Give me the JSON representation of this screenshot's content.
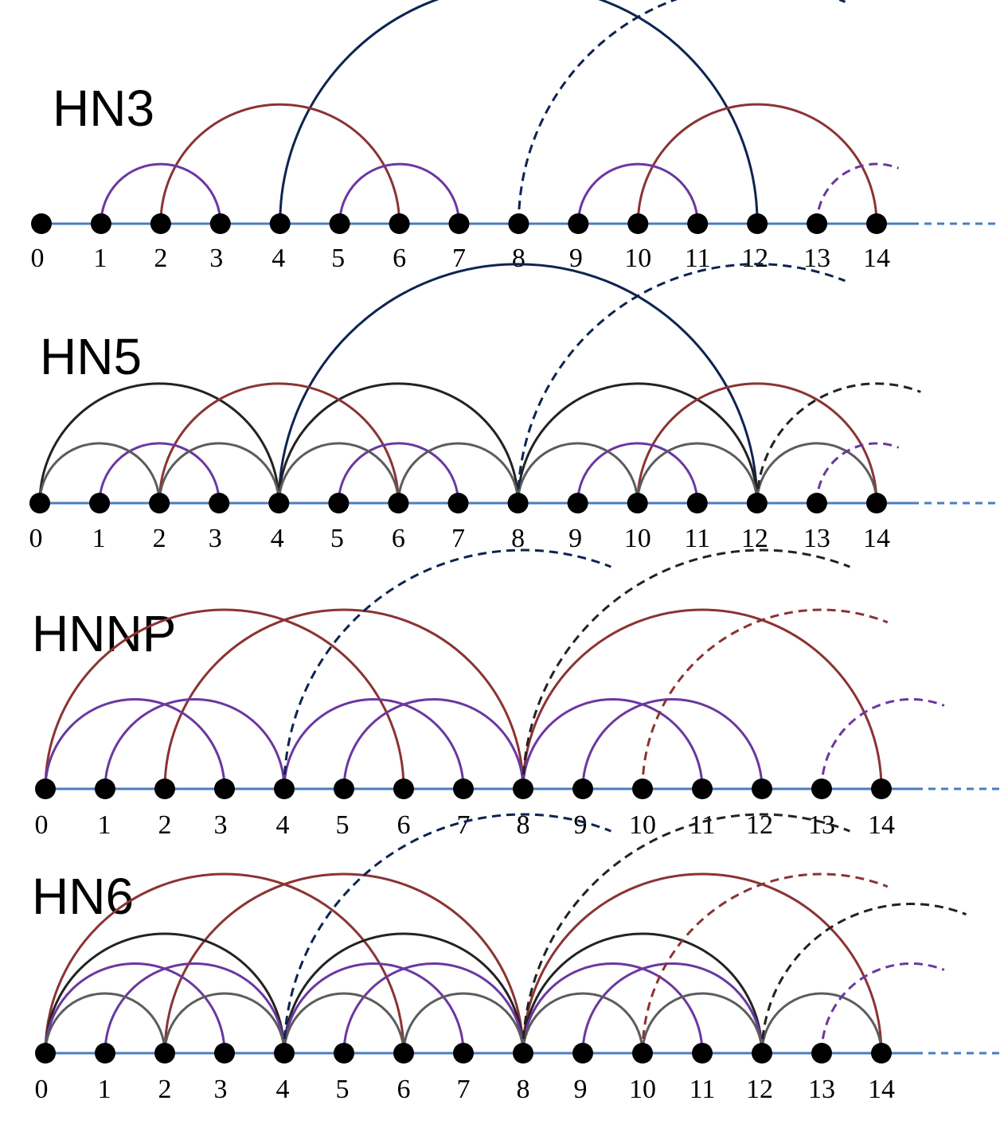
{
  "colors": {
    "axis": "#4a7dbf",
    "node": "#000000",
    "long": "#0d2451",
    "red": "#8b3333",
    "purple": "#6a38a0",
    "black": "#222222",
    "gray": "#5c5c5c"
  },
  "node_labels": [
    "0",
    "1",
    "2",
    "3",
    "4",
    "5",
    "6",
    "7",
    "8",
    "9",
    "10",
    "11",
    "12",
    "13",
    "14"
  ],
  "panels": [
    {
      "title": "HN3",
      "edges": [
        {
          "a": 1,
          "b": 3,
          "c": "purple"
        },
        {
          "a": 5,
          "b": 7,
          "c": "purple"
        },
        {
          "a": 9,
          "b": 11,
          "c": "purple"
        },
        {
          "a": 2,
          "b": 6,
          "c": "red"
        },
        {
          "a": 10,
          "b": 14,
          "c": "red"
        },
        {
          "a": 4,
          "b": 12,
          "c": "long"
        }
      ],
      "dashed": [
        {
          "a": 8,
          "b": 16,
          "c": "long"
        },
        {
          "a": 13,
          "b": 15,
          "c": "purple"
        }
      ]
    },
    {
      "title": "HN5",
      "edges": [
        {
          "a": 1,
          "b": 3,
          "c": "purple"
        },
        {
          "a": 5,
          "b": 7,
          "c": "purple"
        },
        {
          "a": 9,
          "b": 11,
          "c": "purple"
        },
        {
          "a": 0,
          "b": 2,
          "c": "gray"
        },
        {
          "a": 2,
          "b": 4,
          "c": "gray"
        },
        {
          "a": 4,
          "b": 6,
          "c": "gray"
        },
        {
          "a": 6,
          "b": 8,
          "c": "gray"
        },
        {
          "a": 8,
          "b": 10,
          "c": "gray"
        },
        {
          "a": 10,
          "b": 12,
          "c": "gray"
        },
        {
          "a": 12,
          "b": 14,
          "c": "gray"
        },
        {
          "a": 0,
          "b": 4,
          "c": "black"
        },
        {
          "a": 4,
          "b": 8,
          "c": "black"
        },
        {
          "a": 8,
          "b": 12,
          "c": "black"
        },
        {
          "a": 2,
          "b": 6,
          "c": "red"
        },
        {
          "a": 10,
          "b": 14,
          "c": "red"
        },
        {
          "a": 4,
          "b": 12,
          "c": "long"
        }
      ],
      "dashed": [
        {
          "a": 8,
          "b": 16,
          "c": "long"
        },
        {
          "a": 12,
          "b": 16,
          "c": "black"
        },
        {
          "a": 13,
          "b": 15,
          "c": "purple"
        }
      ]
    },
    {
      "title": "HNNP",
      "edges": [
        {
          "a": 0,
          "b": 3,
          "c": "purple"
        },
        {
          "a": 1,
          "b": 4,
          "c": "purple"
        },
        {
          "a": 4,
          "b": 7,
          "c": "purple"
        },
        {
          "a": 5,
          "b": 8,
          "c": "purple"
        },
        {
          "a": 8,
          "b": 11,
          "c": "purple"
        },
        {
          "a": 9,
          "b": 12,
          "c": "purple"
        },
        {
          "a": 0,
          "b": 6,
          "c": "red"
        },
        {
          "a": 2,
          "b": 8,
          "c": "red"
        },
        {
          "a": 8,
          "b": 14,
          "c": "red"
        }
      ],
      "dashed": [
        {
          "a": 4,
          "b": 12,
          "c": "long"
        },
        {
          "a": 8,
          "b": 16,
          "c": "black"
        },
        {
          "a": 10,
          "b": 16,
          "c": "red"
        },
        {
          "a": 13,
          "b": 16,
          "c": "purple"
        }
      ]
    },
    {
      "title": "HN6",
      "edges": [
        {
          "a": 0,
          "b": 3,
          "c": "purple"
        },
        {
          "a": 1,
          "b": 4,
          "c": "purple"
        },
        {
          "a": 4,
          "b": 7,
          "c": "purple"
        },
        {
          "a": 5,
          "b": 8,
          "c": "purple"
        },
        {
          "a": 8,
          "b": 11,
          "c": "purple"
        },
        {
          "a": 9,
          "b": 12,
          "c": "purple"
        },
        {
          "a": 0,
          "b": 2,
          "c": "gray"
        },
        {
          "a": 2,
          "b": 4,
          "c": "gray"
        },
        {
          "a": 4,
          "b": 6,
          "c": "gray"
        },
        {
          "a": 6,
          "b": 8,
          "c": "gray"
        },
        {
          "a": 8,
          "b": 10,
          "c": "gray"
        },
        {
          "a": 10,
          "b": 12,
          "c": "gray"
        },
        {
          "a": 12,
          "b": 14,
          "c": "gray"
        },
        {
          "a": 0,
          "b": 4,
          "c": "black"
        },
        {
          "a": 4,
          "b": 8,
          "c": "black"
        },
        {
          "a": 8,
          "b": 12,
          "c": "black"
        },
        {
          "a": 0,
          "b": 6,
          "c": "red"
        },
        {
          "a": 2,
          "b": 8,
          "c": "red"
        },
        {
          "a": 8,
          "b": 14,
          "c": "red"
        }
      ],
      "dashed": [
        {
          "a": 4,
          "b": 12,
          "c": "long"
        },
        {
          "a": 8,
          "b": 16,
          "c": "black"
        },
        {
          "a": 10,
          "b": 16,
          "c": "red"
        },
        {
          "a": 12,
          "b": 17,
          "c": "black"
        },
        {
          "a": 13,
          "b": 16,
          "c": "purple"
        }
      ]
    }
  ]
}
